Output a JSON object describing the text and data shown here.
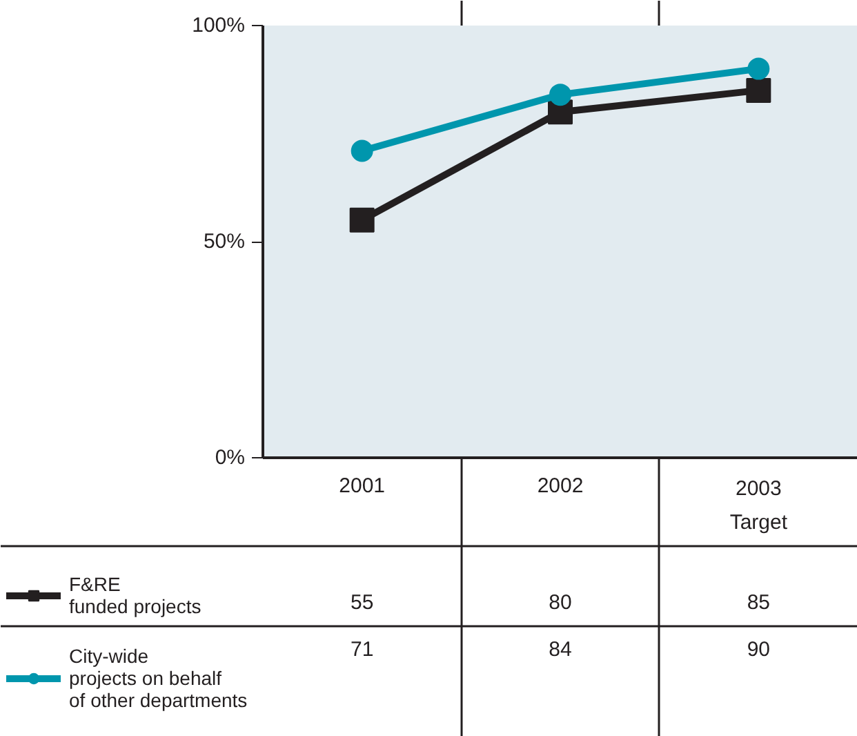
{
  "chart_data": {
    "type": "line",
    "categories": [
      "2001",
      "2002",
      "2003\nTarget"
    ],
    "series": [
      {
        "name": "F&RE\nfunded projects",
        "color": "#231f20",
        "marker": "square",
        "values": [
          55,
          80,
          85
        ]
      },
      {
        "name": "City-wide\nprojects on behalf\nof other departments",
        "color": "#0096ad",
        "marker": "circle",
        "values": [
          71,
          84,
          90
        ]
      }
    ],
    "ylim": [
      0,
      100
    ],
    "yticks": [
      {
        "value": 0,
        "label": "0%"
      },
      {
        "value": 50,
        "label": "50%"
      },
      {
        "value": 100,
        "label": "100%"
      }
    ],
    "data_labels": true,
    "legend": "bottom"
  }
}
